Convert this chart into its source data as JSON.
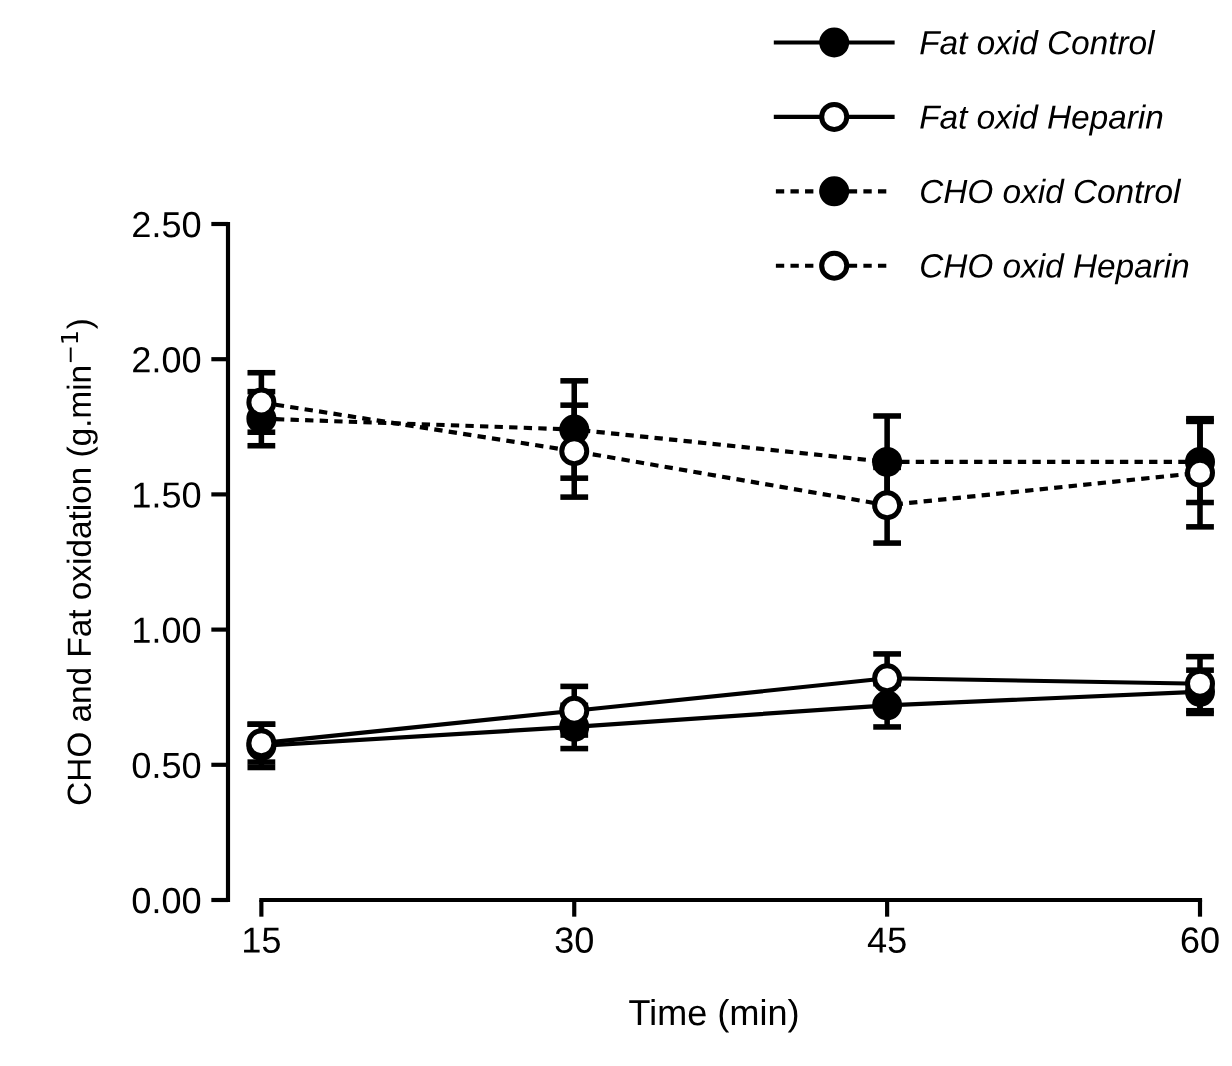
{
  "chart_data": {
    "type": "line",
    "xlabel": "Time (min)",
    "ylabel": "CHO and Fat oxidation (g.min$^{−1}$)",
    "x": [
      15,
      30,
      45,
      60
    ],
    "series": [
      {
        "name": "Fat oxid Control",
        "color": "#000000",
        "values": [
          0.57,
          0.64,
          0.72,
          0.77
        ],
        "errors": [
          0.08,
          0.08,
          0.08,
          0.08
        ],
        "line_style": "solid"
      },
      {
        "name": "Fat oxid Heparin",
        "color": "#ffffff",
        "values": [
          0.58,
          0.7,
          0.82,
          0.8
        ],
        "errors": [
          0.07,
          0.09,
          0.09,
          0.1
        ],
        "line_style": "solid"
      },
      {
        "name": "CHO oxid Control",
        "color": "#000000",
        "values": [
          1.78,
          1.74,
          1.62,
          1.62
        ],
        "errors": [
          0.1,
          0.18,
          0.17,
          0.15
        ],
        "line_style": "dashed"
      },
      {
        "name": "CHO oxid Heparin",
        "color": "#ffffff",
        "values": [
          1.84,
          1.66,
          1.46,
          1.58
        ],
        "errors": [
          0.11,
          0.17,
          0.14,
          0.2
        ],
        "line_style": "dashed"
      }
    ],
    "marker": "circle",
    "xlim": [
      13.4,
      60
    ],
    "xticks": [
      15,
      30,
      45,
      60
    ],
    "ylim": [
      0,
      2.5
    ],
    "yticks": [
      {
        "value": 0,
        "label": "0.00"
      },
      {
        "value": 0.5,
        "label": "0.50"
      },
      {
        "value": 1,
        "label": "1.00"
      },
      {
        "value": 1.5,
        "label": "1.50"
      },
      {
        "value": 2,
        "label": "2.00"
      },
      {
        "value": 2.5,
        "label": "2.50"
      }
    ],
    "legend": "top right"
  }
}
